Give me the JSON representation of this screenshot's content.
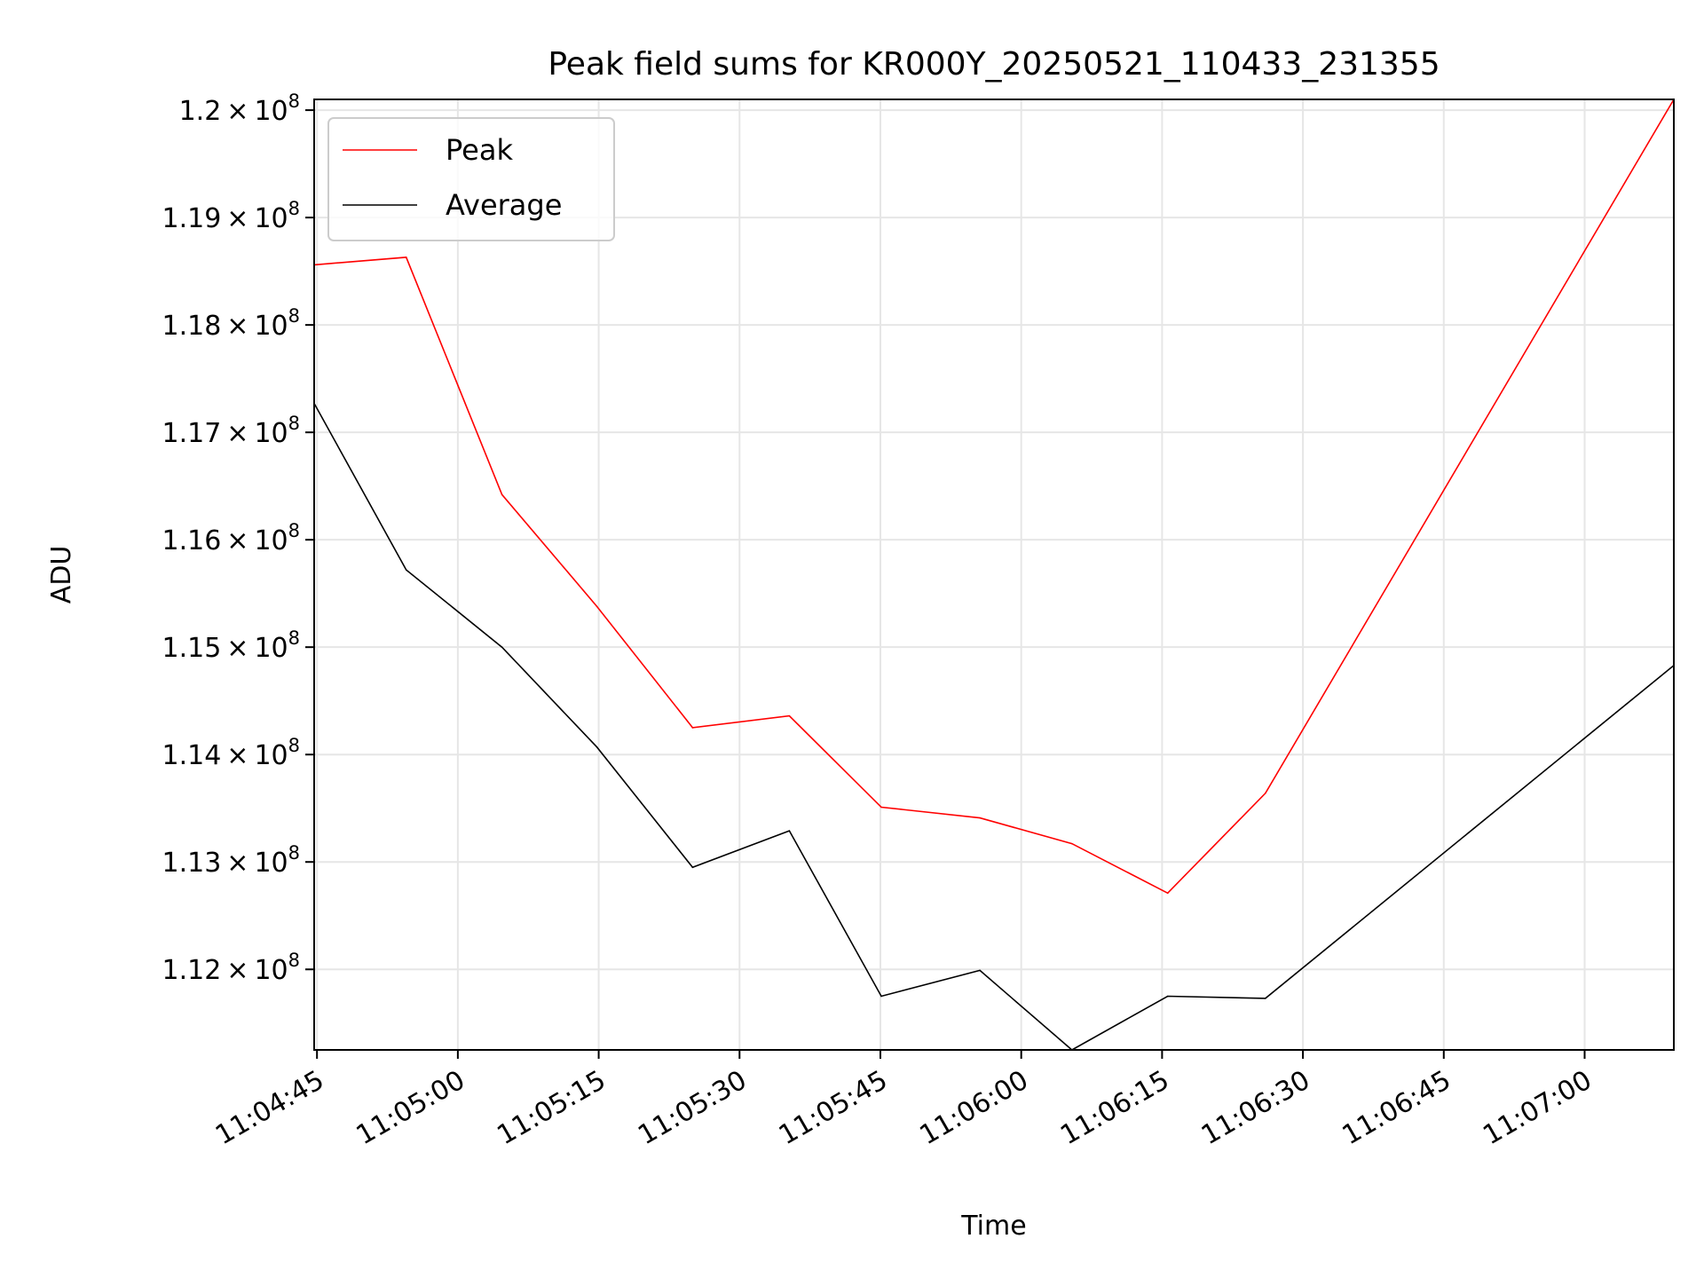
{
  "chart_data": {
    "type": "line",
    "title": "Peak field sums for KR000Y_20250521_110433_231355",
    "xlabel": "Time",
    "ylabel": "ADU",
    "x_ticks": [
      "11:04:45",
      "11:05:00",
      "11:05:15",
      "11:05:30",
      "11:05:45",
      "11:06:00",
      "11:06:15",
      "11:06:30",
      "11:06:45",
      "11:07:00"
    ],
    "y_ticks": [
      {
        "mantissa": "1.12",
        "value": 112000000
      },
      {
        "mantissa": "1.13",
        "value": 113000000
      },
      {
        "mantissa": "1.14",
        "value": 114000000
      },
      {
        "mantissa": "1.15",
        "value": 115000000
      },
      {
        "mantissa": "1.16",
        "value": 116000000
      },
      {
        "mantissa": "1.17",
        "value": 117000000
      },
      {
        "mantissa": "1.18",
        "value": 118000000
      },
      {
        "mantissa": "1.19",
        "value": 119000000
      },
      {
        "mantissa": "1.2",
        "value": 120000000
      }
    ],
    "y_tick_suffix": {
      "times": "×",
      "base": "10",
      "exponent": "8"
    },
    "xlim": [
      "11:04:44.7",
      "11:07:09.5"
    ],
    "ylim": [
      111250000,
      120100000
    ],
    "grid": true,
    "legend_position": "top-left",
    "x": [
      "11:04:44.7",
      "11:04:54.5",
      "11:05:04.7",
      "11:05:14.8",
      "11:05:25.0",
      "11:05:35.3",
      "11:05:45.1",
      "11:05:55.6",
      "11:06:05.4",
      "11:06:15.6",
      "11:06:26.0",
      "11:07:09.5"
    ],
    "series": [
      {
        "name": "Peak",
        "color": "#ff0000",
        "values": [
          118560000,
          118630000,
          116420000,
          115380000,
          114250000,
          114360000,
          113510000,
          113410000,
          113170000,
          112710000,
          113640000,
          120100000
        ]
      },
      {
        "name": "Average",
        "color": "#000000",
        "values": [
          117270000,
          115720000,
          115000000,
          114070000,
          112950000,
          113290000,
          111750000,
          111990000,
          111250000,
          111750000,
          111730000,
          114830000
        ]
      }
    ]
  }
}
